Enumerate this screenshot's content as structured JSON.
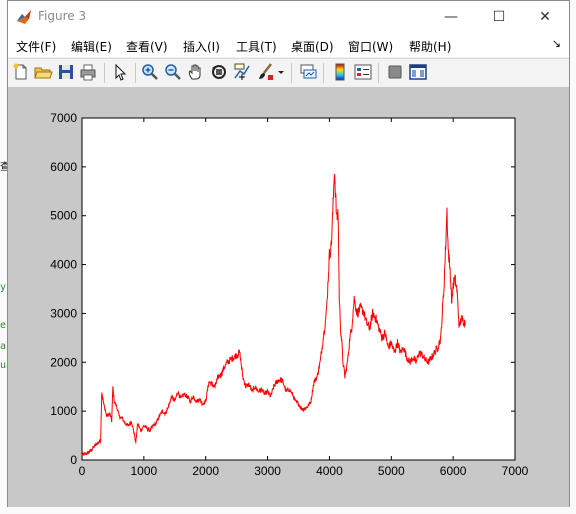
{
  "window": {
    "title": "Figure 3",
    "minimize_glyph": "—",
    "maximize_glyph": "☐",
    "close_glyph": "✕",
    "app_icon": "matlab-figure-icon"
  },
  "menu": {
    "items": [
      {
        "label": "文件(F)"
      },
      {
        "label": "编辑(E)"
      },
      {
        "label": "查看(V)"
      },
      {
        "label": "插入(I)"
      },
      {
        "label": "工具(T)"
      },
      {
        "label": "桌面(D)"
      },
      {
        "label": "窗口(W)"
      },
      {
        "label": "帮助(H)"
      }
    ],
    "dock_glyph": "↘"
  },
  "toolbar": {
    "icons": [
      "new-figure-icon",
      "open-file-icon",
      "save-icon",
      "print-icon",
      "pointer-icon",
      "zoom-in-icon",
      "zoom-out-icon",
      "pan-hand-icon",
      "rotate-3d-icon",
      "data-cursor-icon",
      "brush-icon",
      "brush-dropdown-icon",
      "link-plot-icon",
      "colorbar-icon",
      "legend-icon",
      "hide-plot-tools-icon",
      "show-plot-tools-icon"
    ]
  },
  "background_text": [
    "查",
    "y",
    "e",
    "al",
    "ua"
  ],
  "chart_data": {
    "type": "line",
    "title": "",
    "xlabel": "",
    "ylabel": "",
    "xlim": [
      0,
      7000
    ],
    "ylim": [
      0,
      7000
    ],
    "xticks": [
      "0",
      "1000",
      "2000",
      "3000",
      "4000",
      "5000",
      "6000",
      "7000"
    ],
    "yticks": [
      "0",
      "1000",
      "2000",
      "3000",
      "4000",
      "5000",
      "6000",
      "7000"
    ],
    "grid": false,
    "legend": "none",
    "series": [
      {
        "color": "#ff0000",
        "x": [
          0,
          50,
          100,
          150,
          200,
          250,
          300,
          320,
          350,
          400,
          450,
          480,
          500,
          520,
          560,
          600,
          650,
          700,
          750,
          800,
          850,
          870,
          900,
          950,
          1000,
          1050,
          1100,
          1150,
          1200,
          1250,
          1300,
          1350,
          1400,
          1450,
          1500,
          1550,
          1600,
          1650,
          1700,
          1750,
          1800,
          1850,
          1900,
          1950,
          2000,
          2050,
          2100,
          2150,
          2200,
          2250,
          2300,
          2350,
          2400,
          2450,
          2500,
          2550,
          2600,
          2650,
          2700,
          2750,
          2800,
          2850,
          2900,
          2950,
          3000,
          3050,
          3100,
          3150,
          3200,
          3250,
          3300,
          3350,
          3400,
          3450,
          3500,
          3550,
          3600,
          3650,
          3700,
          3750,
          3800,
          3850,
          3900,
          3950,
          4000,
          4030,
          4060,
          4080,
          4100,
          4120,
          4140,
          4160,
          4180,
          4200,
          4220,
          4250,
          4280,
          4300,
          4330,
          4360,
          4400,
          4450,
          4500,
          4550,
          4600,
          4650,
          4700,
          4750,
          4800,
          4850,
          4900,
          4950,
          5000,
          5050,
          5100,
          5150,
          5200,
          5250,
          5300,
          5350,
          5400,
          5450,
          5500,
          5550,
          5600,
          5650,
          5700,
          5750,
          5800,
          5850,
          5880,
          5900,
          5920,
          5950,
          5980,
          6000,
          6030,
          6060,
          6100,
          6130,
          6160,
          6200
        ],
        "y": [
          100,
          120,
          150,
          200,
          280,
          350,
          400,
          1400,
          1150,
          900,
          950,
          800,
          1500,
          1200,
          1100,
          900,
          850,
          750,
          700,
          800,
          500,
          350,
          750,
          600,
          700,
          650,
          600,
          700,
          750,
          900,
          1000,
          950,
          1100,
          1300,
          1200,
          1400,
          1250,
          1350,
          1300,
          1200,
          1300,
          1200,
          1250,
          1150,
          1200,
          1600,
          1550,
          1500,
          1700,
          1750,
          1900,
          2000,
          2050,
          2100,
          2150,
          2200,
          1700,
          1500,
          1550,
          1400,
          1500,
          1400,
          1450,
          1350,
          1400,
          1300,
          1500,
          1600,
          1650,
          1600,
          1400,
          1450,
          1350,
          1200,
          1150,
          1050,
          1050,
          1100,
          1200,
          1600,
          1700,
          2000,
          2500,
          3000,
          4200,
          4400,
          5200,
          6000,
          5400,
          4900,
          5100,
          3300,
          2700,
          2400,
          2000,
          1700,
          1900,
          2100,
          2500,
          2700,
          3300,
          3000,
          3100,
          3050,
          2800,
          2700,
          3000,
          2900,
          2700,
          2500,
          2600,
          2300,
          2400,
          2200,
          2400,
          2200,
          2300,
          2100,
          2000,
          2100,
          2000,
          2200,
          2150,
          2050,
          2000,
          2100,
          2200,
          2300,
          2500,
          3500,
          4400,
          5100,
          4300,
          3900,
          3200,
          3600,
          3700,
          3500,
          2700,
          2900,
          2850,
          2800
        ]
      }
    ]
  }
}
